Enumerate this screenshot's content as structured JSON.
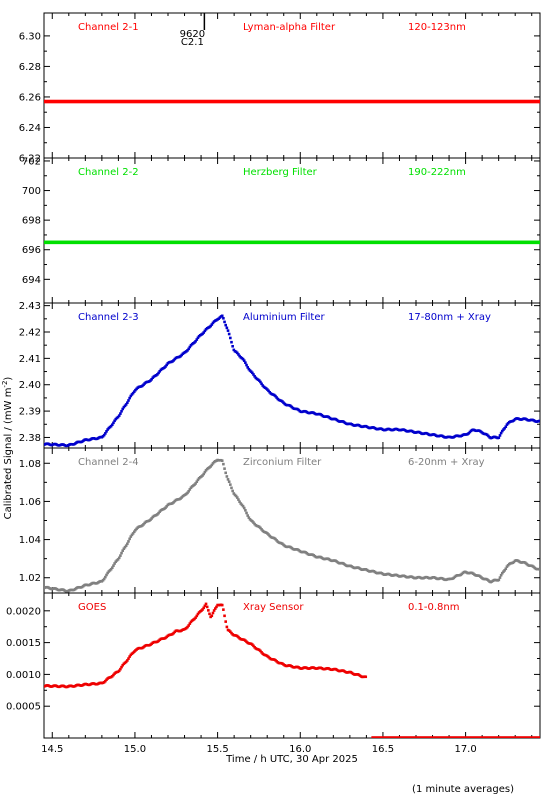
{
  "xlabel": "Time / h UTC, 30 Apr 2025",
  "ylabel": "Calibrated Signal / (mW m",
  "ylabel_sup": "-2",
  "ylabel_close": ")",
  "footnote": "(1 minute averages)",
  "marker": {
    "line1": "9620",
    "line2": "C2.1",
    "x": 15.42
  },
  "colors": {
    "red": "#ff0000",
    "green": "#00e000",
    "blue": "#0000cc",
    "gray": "#808080",
    "goes_red": "#ee0000"
  },
  "chart_data": [
    {
      "type": "scatter",
      "xlim": [
        14.45,
        17.45
      ],
      "ylim": [
        6.22,
        6.315
      ],
      "yticks": [
        6.22,
        6.24,
        6.26,
        6.28,
        6.3
      ],
      "ytick_labels": [
        "6.22",
        "6.24",
        "6.26",
        "6.28",
        "6.30"
      ],
      "color_key": "red",
      "labels": [
        "Channel 2-1",
        "Lyman-alpha Filter",
        "120-123nm"
      ],
      "series": [
        {
          "profile": "flat",
          "x": [
            14.45,
            17.45
          ],
          "y": [
            6.257,
            6.257
          ]
        }
      ]
    },
    {
      "type": "scatter",
      "xlim": [
        14.45,
        17.45
      ],
      "ylim": [
        692.4,
        702.2
      ],
      "yticks": [
        694,
        696,
        698,
        700,
        702
      ],
      "ytick_labels": [
        "694",
        "696",
        "698",
        "700",
        "702"
      ],
      "color_key": "green",
      "labels": [
        "Channel 2-2",
        "Herzberg Filter",
        "190-222nm"
      ],
      "series": [
        {
          "profile": "flat",
          "x": [
            14.45,
            17.45
          ],
          "y": [
            696.5,
            696.5
          ]
        }
      ]
    },
    {
      "type": "scatter",
      "xlim": [
        14.45,
        17.45
      ],
      "ylim": [
        2.376,
        2.431
      ],
      "yticks": [
        2.38,
        2.39,
        2.4,
        2.41,
        2.42,
        2.43
      ],
      "ytick_labels": [
        "2.38",
        "2.39",
        "2.40",
        "2.41",
        "2.42",
        "2.43"
      ],
      "color_key": "blue",
      "labels": [
        "Channel 2-3",
        "Aluminium Filter",
        "17-80nm + Xray"
      ],
      "series": [
        {
          "x": [
            14.45,
            14.6,
            14.7,
            14.8,
            14.9,
            15.0,
            15.1,
            15.2,
            15.3,
            15.4,
            15.45,
            15.5,
            15.53,
            15.56,
            15.6,
            15.65,
            15.7,
            15.8,
            15.9,
            16.0,
            16.1,
            16.2,
            16.3,
            16.4,
            16.5,
            16.6,
            16.7,
            16.8,
            16.9,
            17.0,
            17.05,
            17.1,
            17.15,
            17.2,
            17.25,
            17.3,
            17.35,
            17.45
          ],
          "y": [
            2.3775,
            2.377,
            2.379,
            2.38,
            2.388,
            2.398,
            2.402,
            2.408,
            2.412,
            2.419,
            2.422,
            2.425,
            2.426,
            2.421,
            2.413,
            2.41,
            2.405,
            2.398,
            2.393,
            2.39,
            2.389,
            2.387,
            2.385,
            2.384,
            2.383,
            2.383,
            2.382,
            2.381,
            2.38,
            2.381,
            2.383,
            2.382,
            2.38,
            2.38,
            2.385,
            2.387,
            2.387,
            2.386
          ]
        }
      ]
    },
    {
      "type": "scatter",
      "xlim": [
        14.45,
        17.45
      ],
      "ylim": [
        1.012,
        1.088
      ],
      "yticks": [
        1.02,
        1.04,
        1.06,
        1.08
      ],
      "ytick_labels": [
        "1.02",
        "1.04",
        "1.06",
        "1.08"
      ],
      "color_key": "gray",
      "labels": [
        "Channel 2-4",
        "Zirconium Filter",
        "6-20nm + Xray"
      ],
      "series": [
        {
          "x": [
            14.45,
            14.6,
            14.7,
            14.8,
            14.9,
            15.0,
            15.1,
            15.2,
            15.3,
            15.4,
            15.45,
            15.5,
            15.53,
            15.56,
            15.6,
            15.65,
            15.7,
            15.8,
            15.9,
            16.0,
            16.1,
            16.2,
            16.3,
            16.4,
            16.5,
            16.6,
            16.7,
            16.8,
            16.9,
            17.0,
            17.05,
            17.1,
            17.15,
            17.2,
            17.25,
            17.3,
            17.35,
            17.45
          ],
          "y": [
            1.015,
            1.013,
            1.016,
            1.018,
            1.03,
            1.045,
            1.051,
            1.058,
            1.063,
            1.073,
            1.078,
            1.082,
            1.081,
            1.072,
            1.064,
            1.058,
            1.05,
            1.043,
            1.037,
            1.034,
            1.031,
            1.029,
            1.026,
            1.024,
            1.022,
            1.021,
            1.02,
            1.02,
            1.019,
            1.023,
            1.022,
            1.02,
            1.018,
            1.019,
            1.026,
            1.029,
            1.028,
            1.024
          ]
        }
      ]
    },
    {
      "type": "scatter",
      "xlim": [
        14.45,
        17.45
      ],
      "ylim": [
        0.0,
        0.00228
      ],
      "yticks": [
        0.0005,
        0.001,
        0.0015,
        0.002
      ],
      "ytick_labels": [
        "0.0005",
        "0.0010",
        "0.0015",
        "0.0020"
      ],
      "color_key": "goes_red",
      "labels": [
        "GOES",
        "Xray Sensor",
        "0.1-0.8nm"
      ],
      "series": [
        {
          "x": [
            14.45,
            14.6,
            14.7,
            14.8,
            14.9,
            15.0,
            15.1,
            15.2,
            15.25,
            15.3,
            15.35,
            15.4,
            15.43,
            15.46,
            15.5,
            15.53,
            15.56,
            15.6,
            15.7,
            15.8,
            15.9,
            16.0,
            16.1,
            16.2,
            16.3,
            16.4
          ],
          "y": [
            0.00082,
            0.00081,
            0.00084,
            0.00086,
            0.00105,
            0.00138,
            0.00148,
            0.0016,
            0.00168,
            0.0017,
            0.00185,
            0.002,
            0.0021,
            0.0019,
            0.0021,
            0.00208,
            0.0017,
            0.00162,
            0.00148,
            0.00128,
            0.00115,
            0.0011,
            0.0011,
            0.00108,
            0.00103,
            0.00095
          ]
        },
        {
          "x": [
            16.43,
            17.45
          ],
          "y": [
            0.0,
            0.0
          ]
        }
      ]
    }
  ]
}
